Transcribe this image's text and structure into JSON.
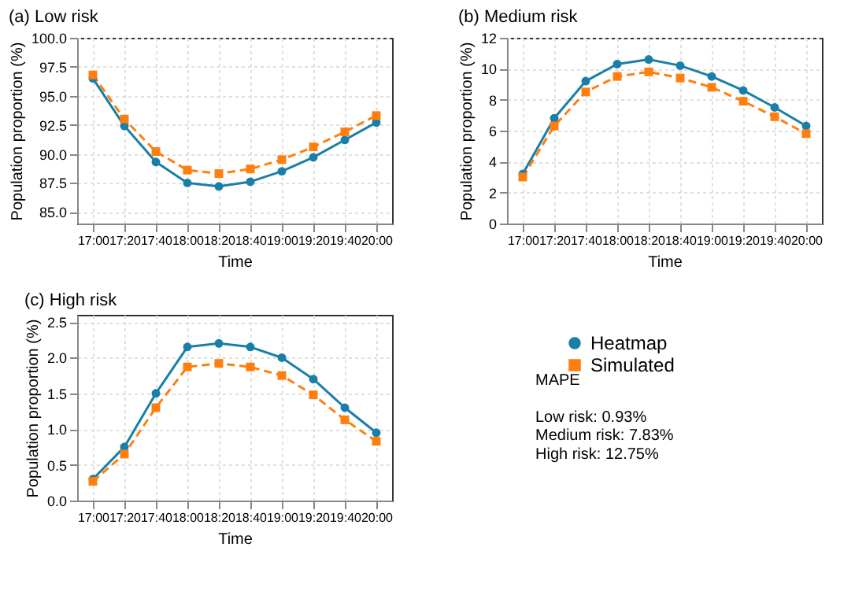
{
  "chart_data": [
    {
      "type": "line",
      "title": "(a) Low risk",
      "xlabel": "Time",
      "ylabel": "Population proportion (%)",
      "categories": [
        "17:00",
        "17:20",
        "17:40",
        "18:00",
        "18:20",
        "18:40",
        "19:00",
        "19:20",
        "19:40",
        "20:00"
      ],
      "series": [
        {
          "color": "#1a7fa8",
          "marker": "circle",
          "line_style": "solid",
          "values": [
            96.5,
            92.4,
            89.3,
            87.5,
            87.2,
            87.6,
            88.5,
            89.7,
            91.2,
            92.7
          ]
        },
        {
          "color": "#ff7f0e",
          "marker": "square",
          "line_style": "dashed",
          "values": [
            96.8,
            93.0,
            90.2,
            88.6,
            88.3,
            88.7,
            89.5,
            90.6,
            91.9,
            93.3
          ]
        }
      ],
      "ylim": [
        84,
        100
      ],
      "yticks": [
        {
          "value": 85,
          "label": "85.0"
        },
        {
          "value": 87.5,
          "label": "87.5"
        },
        {
          "value": 90,
          "label": "90.0"
        },
        {
          "value": 92.5,
          "label": "92.5"
        },
        {
          "value": 95,
          "label": "95.0"
        },
        {
          "value": 97.5,
          "label": "97.5"
        },
        {
          "value": 100,
          "label": "100.0"
        }
      ],
      "grid": true,
      "legend": false
    },
    {
      "type": "line",
      "title": "(b) Medium risk",
      "xlabel": "Time",
      "ylabel": "Population proportion (%)",
      "categories": [
        "17:00",
        "17:20",
        "17:40",
        "18:00",
        "18:20",
        "18:40",
        "19:00",
        "19:20",
        "19:40",
        "20:00"
      ],
      "series": [
        {
          "color": "#1a7fa8",
          "marker": "circle",
          "line_style": "solid",
          "values": [
            3.2,
            6.8,
            9.2,
            10.3,
            10.6,
            10.2,
            9.5,
            8.6,
            7.5,
            6.3
          ]
        },
        {
          "color": "#ff7f0e",
          "marker": "square",
          "line_style": "dashed",
          "values": [
            3.0,
            6.3,
            8.5,
            9.5,
            9.8,
            9.4,
            8.8,
            7.9,
            6.9,
            5.8
          ]
        }
      ],
      "ylim": [
        0,
        12
      ],
      "yticks": [
        0,
        2,
        4,
        6,
        8,
        10,
        12
      ],
      "grid": true,
      "legend": false
    },
    {
      "type": "line",
      "title": "(c) High risk",
      "xlabel": "Time",
      "ylabel": "Population proportion (%)",
      "categories": [
        "17:00",
        "17:20",
        "17:40",
        "18:00",
        "18:20",
        "18:40",
        "19:00",
        "19:20",
        "19:40",
        "20:00"
      ],
      "series": [
        {
          "name": "Heatmap",
          "color": "#1a7fa8",
          "marker": "circle",
          "line_style": "solid",
          "values": [
            0.3,
            0.75,
            1.5,
            2.15,
            2.2,
            2.15,
            2.0,
            1.7,
            1.3,
            0.95
          ]
        },
        {
          "name": "Simulated",
          "color": "#ff7f0e",
          "marker": "square",
          "line_style": "dashed",
          "values": [
            0.27,
            0.65,
            1.3,
            1.87,
            1.92,
            1.87,
            1.75,
            1.48,
            1.13,
            0.83
          ]
        }
      ],
      "ylim": [
        0,
        2.6
      ],
      "yticks": [
        {
          "value": 0,
          "label": "0.0"
        },
        {
          "value": 0.5,
          "label": "0.5"
        },
        {
          "value": 1,
          "label": "1.0"
        },
        {
          "value": 1.5,
          "label": "1.5"
        },
        {
          "value": 2,
          "label": "2.0"
        },
        {
          "value": 2.5,
          "label": "2.5"
        }
      ],
      "grid": true,
      "legend": "right"
    },
    {
      "type": "other",
      "annotations": [
        "MAPE",
        "Low risk: 0.93%",
        "Medium risk: 7.83%",
        "High risk: 12.75%"
      ]
    }
  ]
}
